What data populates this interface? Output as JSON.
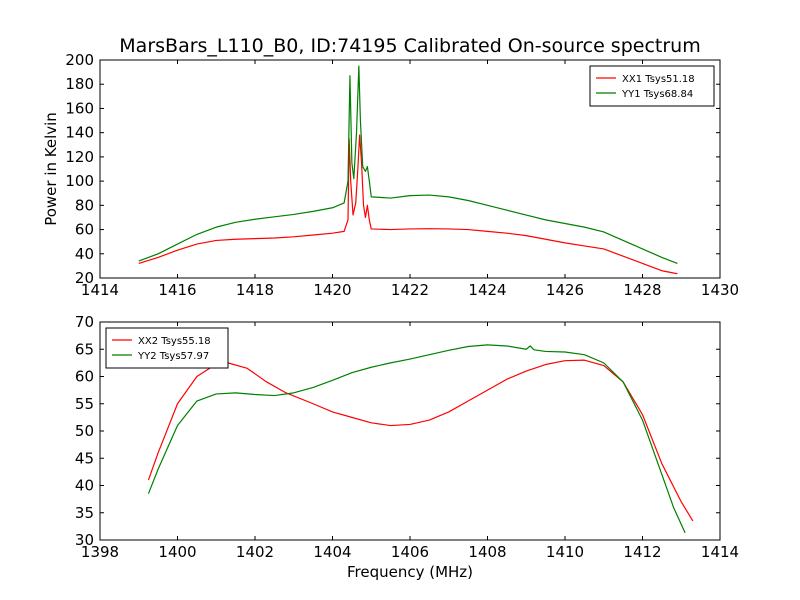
{
  "chart_data": [
    {
      "type": "line",
      "title": "MarsBars_L110_B0, ID:74195 Calibrated On-source spectrum",
      "xlabel": "",
      "ylabel": "Power in Kelvin",
      "xlim": [
        1414,
        1430
      ],
      "ylim": [
        20,
        200
      ],
      "xticks": [
        1414,
        1416,
        1418,
        1420,
        1422,
        1424,
        1426,
        1428,
        1430
      ],
      "yticks": [
        20,
        40,
        60,
        80,
        100,
        120,
        140,
        160,
        180,
        200
      ],
      "grid": false,
      "legend_position": "top-right",
      "series": [
        {
          "name": "XX1 Tsys51.18",
          "color": "#ff0000",
          "points": [
            [
              1415.0,
              32
            ],
            [
              1415.5,
              37
            ],
            [
              1416.0,
              43
            ],
            [
              1416.5,
              48
            ],
            [
              1417.0,
              51
            ],
            [
              1417.5,
              52
            ],
            [
              1418.0,
              52.5
            ],
            [
              1418.5,
              53
            ],
            [
              1419.0,
              54
            ],
            [
              1419.5,
              55.5
            ],
            [
              1420.0,
              57
            ],
            [
              1420.3,
              58.5
            ],
            [
              1420.4,
              68
            ],
            [
              1420.43,
              135
            ],
            [
              1420.47,
              100
            ],
            [
              1420.53,
              72
            ],
            [
              1420.6,
              82
            ],
            [
              1420.65,
              108
            ],
            [
              1420.7,
              138
            ],
            [
              1420.75,
              115
            ],
            [
              1420.8,
              80
            ],
            [
              1420.85,
              70
            ],
            [
              1420.9,
              80
            ],
            [
              1420.95,
              68
            ],
            [
              1421.0,
              60.5
            ],
            [
              1421.5,
              60
            ],
            [
              1422.0,
              60.5
            ],
            [
              1422.5,
              60.7
            ],
            [
              1423.0,
              60.5
            ],
            [
              1423.5,
              60
            ],
            [
              1424.0,
              58.5
            ],
            [
              1424.5,
              57
            ],
            [
              1425.0,
              55
            ],
            [
              1425.5,
              52
            ],
            [
              1426.0,
              49
            ],
            [
              1426.5,
              46.5
            ],
            [
              1427.0,
              44
            ],
            [
              1427.5,
              38
            ],
            [
              1428.0,
              32
            ],
            [
              1428.5,
              26
            ],
            [
              1428.9,
              23.5
            ]
          ]
        },
        {
          "name": "YY1 Tsys68.84",
          "color": "#008000",
          "points": [
            [
              1415.0,
              34
            ],
            [
              1415.5,
              40
            ],
            [
              1416.0,
              48
            ],
            [
              1416.5,
              56
            ],
            [
              1417.0,
              62
            ],
            [
              1417.5,
              66
            ],
            [
              1418.0,
              68.5
            ],
            [
              1418.5,
              70.5
            ],
            [
              1419.0,
              72.5
            ],
            [
              1419.5,
              75
            ],
            [
              1420.0,
              78
            ],
            [
              1420.3,
              82
            ],
            [
              1420.4,
              100
            ],
            [
              1420.45,
              187
            ],
            [
              1420.5,
              115
            ],
            [
              1420.55,
              102
            ],
            [
              1420.62,
              140
            ],
            [
              1420.68,
              195
            ],
            [
              1420.72,
              150
            ],
            [
              1420.78,
              112
            ],
            [
              1420.85,
              108
            ],
            [
              1420.9,
              112
            ],
            [
              1420.95,
              100
            ],
            [
              1421.0,
              87
            ],
            [
              1421.5,
              86
            ],
            [
              1422.0,
              88
            ],
            [
              1422.5,
              88.5
            ],
            [
              1423.0,
              87
            ],
            [
              1423.5,
              84
            ],
            [
              1424.0,
              80
            ],
            [
              1424.5,
              76
            ],
            [
              1425.0,
              72
            ],
            [
              1425.5,
              68
            ],
            [
              1426.0,
              65
            ],
            [
              1426.5,
              62
            ],
            [
              1427.0,
              58
            ],
            [
              1427.5,
              51
            ],
            [
              1428.0,
              44
            ],
            [
              1428.5,
              37
            ],
            [
              1428.9,
              32
            ]
          ]
        }
      ]
    },
    {
      "type": "line",
      "title": "",
      "xlabel": "Frequency (MHz)",
      "ylabel": "",
      "xlim": [
        1398,
        1414
      ],
      "ylim": [
        30,
        70
      ],
      "xticks": [
        1398,
        1400,
        1402,
        1404,
        1406,
        1408,
        1410,
        1412,
        1414
      ],
      "yticks": [
        30,
        35,
        40,
        45,
        50,
        55,
        60,
        65,
        70
      ],
      "grid": false,
      "legend_position": "top-left",
      "series": [
        {
          "name": "XX2 Tsys55.18",
          "color": "#ff0000",
          "points": [
            [
              1399.25,
              41
            ],
            [
              1399.5,
              46
            ],
            [
              1400.0,
              55
            ],
            [
              1400.5,
              60
            ],
            [
              1401.0,
              62.3
            ],
            [
              1401.3,
              62.5
            ],
            [
              1401.8,
              61.5
            ],
            [
              1402.3,
              59
            ],
            [
              1402.8,
              57
            ],
            [
              1403.5,
              55
            ],
            [
              1404.0,
              53.5
            ],
            [
              1404.5,
              52.5
            ],
            [
              1405.0,
              51.5
            ],
            [
              1405.5,
              51
            ],
            [
              1406.0,
              51.2
            ],
            [
              1406.5,
              52
            ],
            [
              1407.0,
              53.5
            ],
            [
              1407.5,
              55.5
            ],
            [
              1408.0,
              57.5
            ],
            [
              1408.5,
              59.5
            ],
            [
              1409.0,
              61
            ],
            [
              1409.5,
              62.2
            ],
            [
              1410.0,
              62.9
            ],
            [
              1410.5,
              63
            ],
            [
              1411.0,
              62
            ],
            [
              1411.5,
              59
            ],
            [
              1412.0,
              53
            ],
            [
              1412.5,
              44
            ],
            [
              1413.0,
              37
            ],
            [
              1413.3,
              33.5
            ]
          ]
        },
        {
          "name": "YY2 Tsys57.97",
          "color": "#008000",
          "points": [
            [
              1399.25,
              38.5
            ],
            [
              1399.5,
              43
            ],
            [
              1400.0,
              51
            ],
            [
              1400.5,
              55.5
            ],
            [
              1401.0,
              56.8
            ],
            [
              1401.5,
              57
            ],
            [
              1402.0,
              56.7
            ],
            [
              1402.5,
              56.5
            ],
            [
              1403.0,
              57
            ],
            [
              1403.5,
              58
            ],
            [
              1404.0,
              59.3
            ],
            [
              1404.5,
              60.7
            ],
            [
              1405.0,
              61.7
            ],
            [
              1405.5,
              62.5
            ],
            [
              1406.0,
              63.2
            ],
            [
              1406.5,
              64
            ],
            [
              1407.0,
              64.8
            ],
            [
              1407.5,
              65.5
            ],
            [
              1408.0,
              65.8
            ],
            [
              1408.5,
              65.6
            ],
            [
              1409.0,
              65
            ],
            [
              1409.1,
              65.6
            ],
            [
              1409.2,
              64.9
            ],
            [
              1409.5,
              64.6
            ],
            [
              1410.0,
              64.5
            ],
            [
              1410.5,
              64
            ],
            [
              1411.0,
              62.5
            ],
            [
              1411.5,
              59
            ],
            [
              1412.0,
              52
            ],
            [
              1412.5,
              42
            ],
            [
              1412.8,
              36
            ],
            [
              1413.1,
              31.3
            ]
          ]
        }
      ]
    }
  ]
}
